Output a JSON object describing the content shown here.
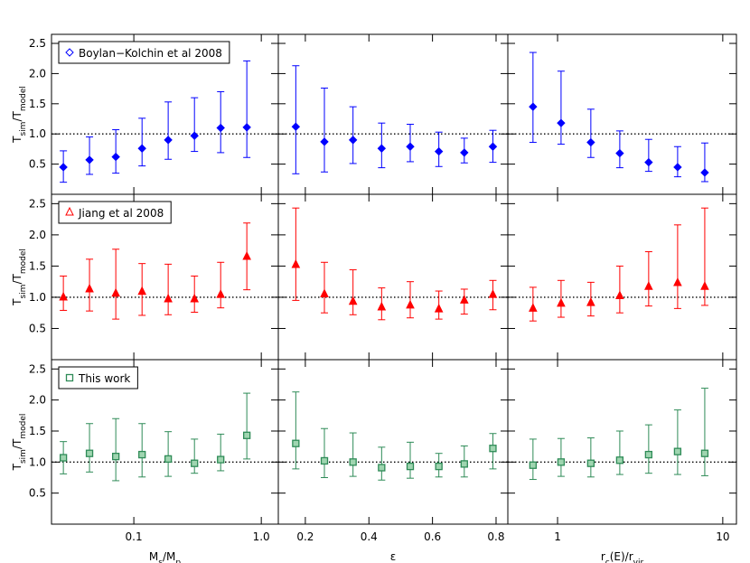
{
  "chart_data": [
    {
      "type": "scatter",
      "xscale": "log",
      "xlim": [
        0.0226,
        1.36
      ],
      "ylim": [
        0,
        2.65
      ],
      "xticks": [
        0.1,
        1
      ],
      "yticks": [
        0.5,
        {
          "value": 1,
          "label": "1.0"
        },
        1.5,
        {
          "value": 2,
          "label": "2.0"
        },
        2.5
      ],
      "show_xticklabels": false,
      "show_yticklabels": true,
      "hline": 1,
      "ylabel": [
        {
          "text": "T"
        },
        {
          "text": "sim",
          "sub": true
        },
        {
          "text": "/T"
        },
        {
          "text": "model",
          "sub": true
        }
      ],
      "x": [
        0.028,
        0.0449,
        0.0722,
        0.116,
        0.186,
        0.299,
        0.48,
        0.77
      ],
      "series": [
        {
          "name": "Boylan−Kolchin et al 2008",
          "color": "#0000ff",
          "marker": "diamond",
          "values": [
            0.45,
            0.57,
            0.62,
            0.76,
            0.9,
            0.97,
            1.1,
            1.11
          ],
          "lo": [
            0.2,
            0.33,
            0.35,
            0.47,
            0.58,
            0.71,
            0.69,
            0.61
          ],
          "hi": [
            0.72,
            0.95,
            1.07,
            1.26,
            1.53,
            1.6,
            1.7,
            2.21
          ]
        }
      ]
    },
    {
      "type": "scatter",
      "xscale": "linear",
      "xlim": [
        0.115,
        0.837
      ],
      "ylim": [
        0,
        2.65
      ],
      "xticks": [
        0.2,
        0.4,
        0.6,
        0.8
      ],
      "yticks": [
        0.5,
        1,
        1.5,
        2,
        2.5
      ],
      "show_xticklabels": false,
      "show_yticklabels": false,
      "hline": 1,
      "x": [
        0.17,
        0.26,
        0.35,
        0.44,
        0.53,
        0.62,
        0.7,
        0.79
      ],
      "series": [
        {
          "color": "#0000ff",
          "marker": "diamond",
          "values": [
            1.12,
            0.87,
            0.9,
            0.76,
            0.79,
            0.71,
            0.69,
            0.79
          ],
          "lo": [
            0.34,
            0.37,
            0.51,
            0.44,
            0.54,
            0.46,
            0.52,
            0.53
          ],
          "hi": [
            2.13,
            1.76,
            1.45,
            1.18,
            1.16,
            1.03,
            0.93,
            1.06
          ]
        }
      ]
    },
    {
      "type": "scatter",
      "xscale": "log",
      "xlim": [
        0.5,
        12.1
      ],
      "ylim": [
        0,
        2.65
      ],
      "xticks": [
        1,
        10
      ],
      "yticks": [
        0.5,
        1,
        1.5,
        2,
        2.5
      ],
      "show_xticklabels": false,
      "show_yticklabels": false,
      "hline": 1,
      "x": [
        0.71,
        1.05,
        1.59,
        2.38,
        3.56,
        5.33,
        7.78
      ],
      "series": [
        {
          "color": "#0000ff",
          "marker": "diamond",
          "values": [
            1.45,
            1.18,
            0.86,
            0.68,
            0.53,
            0.45,
            0.36
          ],
          "lo": [
            0.86,
            0.83,
            0.61,
            0.44,
            0.38,
            0.29,
            0.21
          ],
          "hi": [
            2.35,
            2.04,
            1.41,
            1.05,
            0.91,
            0.79,
            0.85
          ]
        }
      ]
    },
    {
      "type": "scatter",
      "xscale": "log",
      "xlim": [
        0.0226,
        1.36
      ],
      "ylim": [
        0,
        2.65
      ],
      "xticks": [
        0.1,
        1
      ],
      "yticks": [
        0.5,
        {
          "value": 1,
          "label": "1.0"
        },
        1.5,
        {
          "value": 2,
          "label": "2.0"
        },
        2.5
      ],
      "show_xticklabels": false,
      "show_yticklabels": true,
      "hline": 1,
      "ylabel": [
        {
          "text": "T"
        },
        {
          "text": "sim",
          "sub": true
        },
        {
          "text": "/T"
        },
        {
          "text": "model",
          "sub": true
        }
      ],
      "x": [
        0.028,
        0.0449,
        0.0722,
        0.116,
        0.186,
        0.299,
        0.48,
        0.77
      ],
      "series": [
        {
          "name": "Jiang et al 2008",
          "color": "#ff0000",
          "marker": "triangle",
          "values": [
            1.0,
            1.13,
            1.06,
            1.09,
            0.97,
            0.97,
            1.04,
            1.65
          ],
          "lo": [
            0.79,
            0.78,
            0.65,
            0.71,
            0.72,
            0.76,
            0.83,
            1.12
          ],
          "hi": [
            1.34,
            1.61,
            1.77,
            1.54,
            1.53,
            1.34,
            1.56,
            2.19
          ]
        }
      ]
    },
    {
      "type": "scatter",
      "xscale": "linear",
      "xlim": [
        0.115,
        0.837
      ],
      "ylim": [
        0,
        2.65
      ],
      "xticks": [
        0.2,
        0.4,
        0.6,
        0.8
      ],
      "yticks": [
        0.5,
        1,
        1.5,
        2,
        2.5
      ],
      "show_xticklabels": false,
      "show_yticklabels": false,
      "hline": 1,
      "x": [
        0.17,
        0.26,
        0.35,
        0.44,
        0.53,
        0.62,
        0.7,
        0.79
      ],
      "series": [
        {
          "color": "#ff0000",
          "marker": "triangle",
          "values": [
            1.52,
            1.05,
            0.93,
            0.84,
            0.87,
            0.81,
            0.95,
            1.04
          ],
          "lo": [
            0.95,
            0.75,
            0.72,
            0.64,
            0.67,
            0.65,
            0.73,
            0.8
          ],
          "hi": [
            2.43,
            1.56,
            1.44,
            1.15,
            1.25,
            1.1,
            1.13,
            1.27
          ]
        }
      ]
    },
    {
      "type": "scatter",
      "xscale": "log",
      "xlim": [
        0.5,
        12.1
      ],
      "ylim": [
        0,
        2.65
      ],
      "xticks": [
        1,
        10
      ],
      "yticks": [
        0.5,
        1,
        1.5,
        2,
        2.5
      ],
      "show_xticklabels": false,
      "show_yticklabels": false,
      "hline": 1,
      "x": [
        0.71,
        1.05,
        1.59,
        2.38,
        3.56,
        5.33,
        7.78
      ],
      "series": [
        {
          "color": "#ff0000",
          "marker": "triangle",
          "values": [
            0.82,
            0.9,
            0.91,
            1.02,
            1.17,
            1.23,
            1.17
          ],
          "lo": [
            0.62,
            0.68,
            0.7,
            0.75,
            0.86,
            0.82,
            0.87
          ],
          "hi": [
            1.16,
            1.27,
            1.24,
            1.5,
            1.73,
            2.16,
            2.43
          ]
        }
      ]
    },
    {
      "type": "scatter",
      "xscale": "log",
      "xlim": [
        0.0226,
        1.36
      ],
      "ylim": [
        0,
        2.65
      ],
      "xticks": [
        0.1,
        {
          "value": 1,
          "label": "1.0"
        }
      ],
      "yticks": [
        0.5,
        {
          "value": 1,
          "label": "1.0"
        },
        1.5,
        {
          "value": 2,
          "label": "2.0"
        },
        2.5
      ],
      "show_xticklabels": true,
      "show_yticklabels": true,
      "hline": 1,
      "ylabel": [
        {
          "text": "T"
        },
        {
          "text": "sim",
          "sub": true
        },
        {
          "text": "/T"
        },
        {
          "text": "model",
          "sub": true
        }
      ],
      "xlabel": [
        {
          "text": "M"
        },
        {
          "text": "s",
          "sub": true
        },
        {
          "text": "/M"
        },
        {
          "text": "p",
          "sub": true
        }
      ],
      "x": [
        0.028,
        0.0449,
        0.0722,
        0.116,
        0.186,
        0.299,
        0.48,
        0.77
      ],
      "series": [
        {
          "name": "This work",
          "color": "#2e8b57",
          "marker": "square",
          "values": [
            1.07,
            1.14,
            1.09,
            1.12,
            1.05,
            0.98,
            1.04,
            1.43
          ],
          "lo": [
            0.81,
            0.84,
            0.7,
            0.76,
            0.77,
            0.82,
            0.86,
            1.05
          ],
          "hi": [
            1.33,
            1.62,
            1.7,
            1.62,
            1.49,
            1.37,
            1.45,
            2.11
          ]
        }
      ]
    },
    {
      "type": "scatter",
      "xscale": "linear",
      "xlim": [
        0.115,
        0.837
      ],
      "ylim": [
        0,
        2.65
      ],
      "xticks": [
        0.2,
        0.4,
        0.6,
        0.8
      ],
      "yticks": [
        0.5,
        1,
        1.5,
        2,
        2.5
      ],
      "show_xticklabels": true,
      "show_yticklabels": false,
      "hline": 1,
      "xlabel": [
        {
          "text": "ε"
        }
      ],
      "x": [
        0.17,
        0.26,
        0.35,
        0.44,
        0.53,
        0.62,
        0.7,
        0.79
      ],
      "series": [
        {
          "color": "#2e8b57",
          "marker": "square",
          "values": [
            1.3,
            1.02,
            1.0,
            0.91,
            0.93,
            0.93,
            0.97,
            1.22
          ],
          "lo": [
            0.89,
            0.75,
            0.77,
            0.71,
            0.74,
            0.76,
            0.76,
            0.89
          ],
          "hi": [
            2.13,
            1.54,
            1.47,
            1.24,
            1.32,
            1.14,
            1.26,
            1.46
          ]
        }
      ]
    },
    {
      "type": "scatter",
      "xscale": "log",
      "xlim": [
        0.5,
        12.1
      ],
      "ylim": [
        0,
        2.65
      ],
      "xticks": [
        1,
        10
      ],
      "yticks": [
        0.5,
        1,
        1.5,
        2,
        2.5
      ],
      "show_xticklabels": true,
      "show_yticklabels": false,
      "hline": 1,
      "xlabel": [
        {
          "text": "r"
        },
        {
          "text": "c",
          "sub": true
        },
        {
          "text": "(E)/r"
        },
        {
          "text": "vir",
          "sub": true
        }
      ],
      "x": [
        0.71,
        1.05,
        1.59,
        2.38,
        3.56,
        5.33,
        7.78
      ],
      "series": [
        {
          "color": "#2e8b57",
          "marker": "square",
          "values": [
            0.95,
            1.0,
            0.98,
            1.03,
            1.12,
            1.17,
            1.14
          ],
          "lo": [
            0.72,
            0.77,
            0.76,
            0.8,
            0.82,
            0.8,
            0.78
          ],
          "hi": [
            1.37,
            1.38,
            1.39,
            1.5,
            1.6,
            1.84,
            2.19
          ]
        }
      ]
    }
  ]
}
